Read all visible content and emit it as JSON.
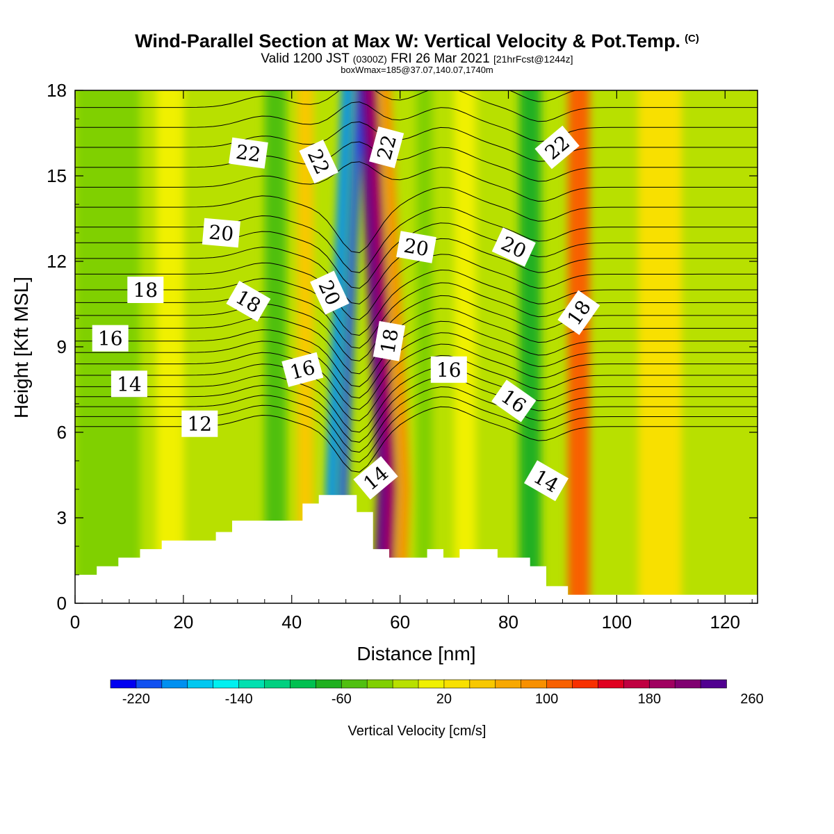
{
  "header": {
    "title": "Wind-Parallel Section at Max W: Vertical Velocity & Pot.Temp.",
    "copyright": "(C)",
    "valid_prefix": "Valid 1200 JST",
    "valid_utc": "(0300Z)",
    "valid_date": "FRI 26 Mar 2021",
    "forecast": "[21hrFcst@1244z]",
    "box_info": "boxWmax=185@37.07,140.07,1740m"
  },
  "chart_data": {
    "type": "contour-section",
    "xlabel": "Distance [nm]",
    "ylabel": "Height [Kft MSL]",
    "xlim": [
      0,
      126
    ],
    "ylim": [
      0,
      18
    ],
    "xticks": [
      "0",
      "20",
      "40",
      "60",
      "80",
      "100",
      "120"
    ],
    "yticks": [
      "0",
      "3",
      "6",
      "9",
      "12",
      "15",
      "18"
    ],
    "colorbar": {
      "label": "Vertical Velocity [cm/s]",
      "tick_labels": [
        "-220",
        "-140",
        "-60",
        "20",
        "100",
        "180",
        "260"
      ],
      "colors": [
        "#0000f0",
        "#1050f0",
        "#0090f0",
        "#00c8f0",
        "#00f0f0",
        "#00e0b0",
        "#00d080",
        "#00c050",
        "#20b020",
        "#50c010",
        "#80d000",
        "#b8e000",
        "#f0f000",
        "#f8e000",
        "#f8c800",
        "#f8a800",
        "#f89000",
        "#f86000",
        "#f83000",
        "#e00020",
        "#c00040",
        "#a00060",
        "#800070",
        "#500090"
      ]
    },
    "terrain_profile": {
      "x": [
        0,
        4,
        4,
        8,
        8,
        12,
        12,
        16,
        16,
        26,
        26,
        29,
        29,
        42,
        42,
        45,
        45,
        52,
        52,
        55,
        55,
        58,
        58,
        65,
        65,
        68,
        68,
        71,
        71,
        78,
        78,
        84,
        84,
        87,
        87,
        91,
        91,
        94,
        94,
        126
      ],
      "y": [
        1.0,
        1.0,
        1.3,
        1.3,
        1.6,
        1.6,
        1.9,
        1.9,
        2.2,
        2.2,
        2.5,
        2.5,
        2.9,
        2.9,
        3.5,
        3.5,
        3.8,
        3.8,
        3.2,
        3.2,
        1.9,
        1.9,
        1.6,
        1.6,
        1.9,
        1.9,
        1.6,
        1.6,
        1.9,
        1.9,
        1.6,
        1.6,
        1.3,
        1.3,
        0.6,
        0.6,
        0.3,
        0.3,
        0.3,
        0.3
      ]
    },
    "vertical_velocity_bands": [
      {
        "x": 0,
        "w": 12,
        "value": -40
      },
      {
        "x": 15,
        "w": 6,
        "value": 0
      },
      {
        "x": 20,
        "w": 5,
        "value": -20
      },
      {
        "x": 35,
        "w": 4,
        "value": -60
      },
      {
        "x": 41,
        "w": 3,
        "value": 40
      },
      {
        "x": 47,
        "w": 2,
        "value": -200
      },
      {
        "x": 49.5,
        "w": 1.5,
        "value": -220
      },
      {
        "x": 55,
        "w": 1.5,
        "value": 260
      },
      {
        "x": 56.5,
        "w": 2,
        "value": 180
      },
      {
        "x": 59,
        "w": 2,
        "value": 80
      },
      {
        "x": 63,
        "w": 3,
        "value": -40
      },
      {
        "x": 70,
        "w": 4,
        "value": 0
      },
      {
        "x": 82,
        "w": 4,
        "value": -80
      },
      {
        "x": 91,
        "w": 4,
        "value": 100
      },
      {
        "x": 104,
        "w": 8,
        "value": 20
      }
    ],
    "theta_contours": [
      {
        "value": 12,
        "base": 6.2
      },
      {
        "value": 14,
        "base": 7.6
      },
      {
        "value": 16,
        "base": 9.2
      },
      {
        "value": 18,
        "base": 11.0
      },
      {
        "value": 20,
        "base": 13.2
      },
      {
        "value": 22,
        "base": 16.0
      }
    ],
    "contour_labels": [
      {
        "text": "22",
        "x": 32,
        "y": 15.8,
        "rot": 8
      },
      {
        "text": "22",
        "x": 45,
        "y": 15.5,
        "rot": 65
      },
      {
        "text": "22",
        "x": 57.5,
        "y": 16.0,
        "rot": -75
      },
      {
        "text": "22",
        "x": 89,
        "y": 16.0,
        "rot": -40
      },
      {
        "text": "20",
        "x": 27,
        "y": 13.0,
        "rot": 5
      },
      {
        "text": "20",
        "x": 47,
        "y": 10.9,
        "rot": 65
      },
      {
        "text": "20",
        "x": 63,
        "y": 12.5,
        "rot": 10
      },
      {
        "text": "20",
        "x": 81,
        "y": 12.5,
        "rot": 25
      },
      {
        "text": "18",
        "x": 13,
        "y": 11.0,
        "rot": 0
      },
      {
        "text": "18",
        "x": 32,
        "y": 10.6,
        "rot": 30
      },
      {
        "text": "18",
        "x": 58,
        "y": 9.2,
        "rot": -80
      },
      {
        "text": "18",
        "x": 93,
        "y": 10.2,
        "rot": -55
      },
      {
        "text": "16",
        "x": 6.5,
        "y": 9.3,
        "rot": 0
      },
      {
        "text": "16",
        "x": 42,
        "y": 8.2,
        "rot": -15
      },
      {
        "text": "16",
        "x": 69,
        "y": 8.2,
        "rot": 0
      },
      {
        "text": "16",
        "x": 81,
        "y": 7.1,
        "rot": 35
      },
      {
        "text": "14",
        "x": 10,
        "y": 7.7,
        "rot": 0
      },
      {
        "text": "14",
        "x": 55.5,
        "y": 4.4,
        "rot": -40
      },
      {
        "text": "14",
        "x": 87,
        "y": 4.3,
        "rot": 30
      },
      {
        "text": "12",
        "x": 23,
        "y": 6.3,
        "rot": 0
      }
    ]
  }
}
